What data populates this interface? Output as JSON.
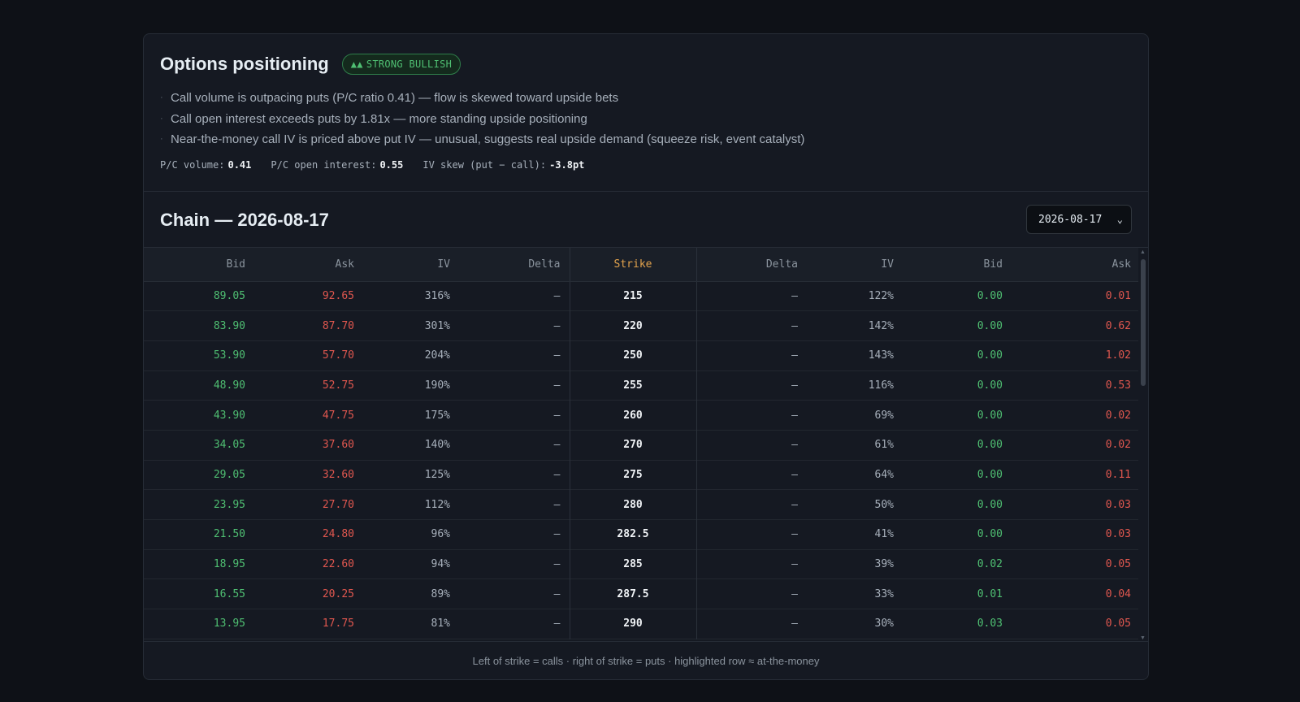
{
  "positioning": {
    "title": "Options positioning",
    "badge": {
      "arrows": "▲▲",
      "label": "STRONG BULLISH"
    },
    "bullets": [
      "Call volume is outpacing puts (P/C ratio 0.41) — flow is skewed toward upside bets",
      "Call open interest exceeds puts by 1.81x — more standing upside positioning",
      "Near-the-money call IV is priced above put IV — unusual, suggests real upside demand (squeeze risk, event catalyst)"
    ],
    "metrics": [
      {
        "label": "P/C volume:",
        "value": "0.41"
      },
      {
        "label": "P/C open interest:",
        "value": "0.55"
      },
      {
        "label": "IV skew (put − call):",
        "value": "-3.8pt"
      }
    ]
  },
  "chain": {
    "title": "Chain — 2026-08-17",
    "selected_date": "2026-08-17",
    "columns": {
      "call_bid": "Bid",
      "call_ask": "Ask",
      "call_iv": "IV",
      "call_delta": "Delta",
      "strike": "Strike",
      "put_delta": "Delta",
      "put_iv": "IV",
      "put_bid": "Bid",
      "put_ask": "Ask"
    },
    "rows": [
      {
        "call_bid": "89.05",
        "call_ask": "92.65",
        "call_iv": "316%",
        "call_delta": "—",
        "strike": "215",
        "put_delta": "—",
        "put_iv": "122%",
        "put_bid": "0.00",
        "put_ask": "0.01"
      },
      {
        "call_bid": "83.90",
        "call_ask": "87.70",
        "call_iv": "301%",
        "call_delta": "—",
        "strike": "220",
        "put_delta": "—",
        "put_iv": "142%",
        "put_bid": "0.00",
        "put_ask": "0.62"
      },
      {
        "call_bid": "53.90",
        "call_ask": "57.70",
        "call_iv": "204%",
        "call_delta": "—",
        "strike": "250",
        "put_delta": "—",
        "put_iv": "143%",
        "put_bid": "0.00",
        "put_ask": "1.02"
      },
      {
        "call_bid": "48.90",
        "call_ask": "52.75",
        "call_iv": "190%",
        "call_delta": "—",
        "strike": "255",
        "put_delta": "—",
        "put_iv": "116%",
        "put_bid": "0.00",
        "put_ask": "0.53"
      },
      {
        "call_bid": "43.90",
        "call_ask": "47.75",
        "call_iv": "175%",
        "call_delta": "—",
        "strike": "260",
        "put_delta": "—",
        "put_iv": "69%",
        "put_bid": "0.00",
        "put_ask": "0.02"
      },
      {
        "call_bid": "34.05",
        "call_ask": "37.60",
        "call_iv": "140%",
        "call_delta": "—",
        "strike": "270",
        "put_delta": "—",
        "put_iv": "61%",
        "put_bid": "0.00",
        "put_ask": "0.02"
      },
      {
        "call_bid": "29.05",
        "call_ask": "32.60",
        "call_iv": "125%",
        "call_delta": "—",
        "strike": "275",
        "put_delta": "—",
        "put_iv": "64%",
        "put_bid": "0.00",
        "put_ask": "0.11"
      },
      {
        "call_bid": "23.95",
        "call_ask": "27.70",
        "call_iv": "112%",
        "call_delta": "—",
        "strike": "280",
        "put_delta": "—",
        "put_iv": "50%",
        "put_bid": "0.00",
        "put_ask": "0.03"
      },
      {
        "call_bid": "21.50",
        "call_ask": "24.80",
        "call_iv": "96%",
        "call_delta": "—",
        "strike": "282.5",
        "put_delta": "—",
        "put_iv": "41%",
        "put_bid": "0.00",
        "put_ask": "0.03"
      },
      {
        "call_bid": "18.95",
        "call_ask": "22.60",
        "call_iv": "94%",
        "call_delta": "—",
        "strike": "285",
        "put_delta": "—",
        "put_iv": "39%",
        "put_bid": "0.02",
        "put_ask": "0.05"
      },
      {
        "call_bid": "16.55",
        "call_ask": "20.25",
        "call_iv": "89%",
        "call_delta": "—",
        "strike": "287.5",
        "put_delta": "—",
        "put_iv": "33%",
        "put_bid": "0.01",
        "put_ask": "0.04"
      },
      {
        "call_bid": "13.95",
        "call_ask": "17.75",
        "call_iv": "81%",
        "call_delta": "—",
        "strike": "290",
        "put_delta": "—",
        "put_iv": "30%",
        "put_bid": "0.03",
        "put_ask": "0.05"
      }
    ],
    "footer_note": "Left of strike = calls · right of strike = puts · highlighted row ≈ at-the-money"
  }
}
